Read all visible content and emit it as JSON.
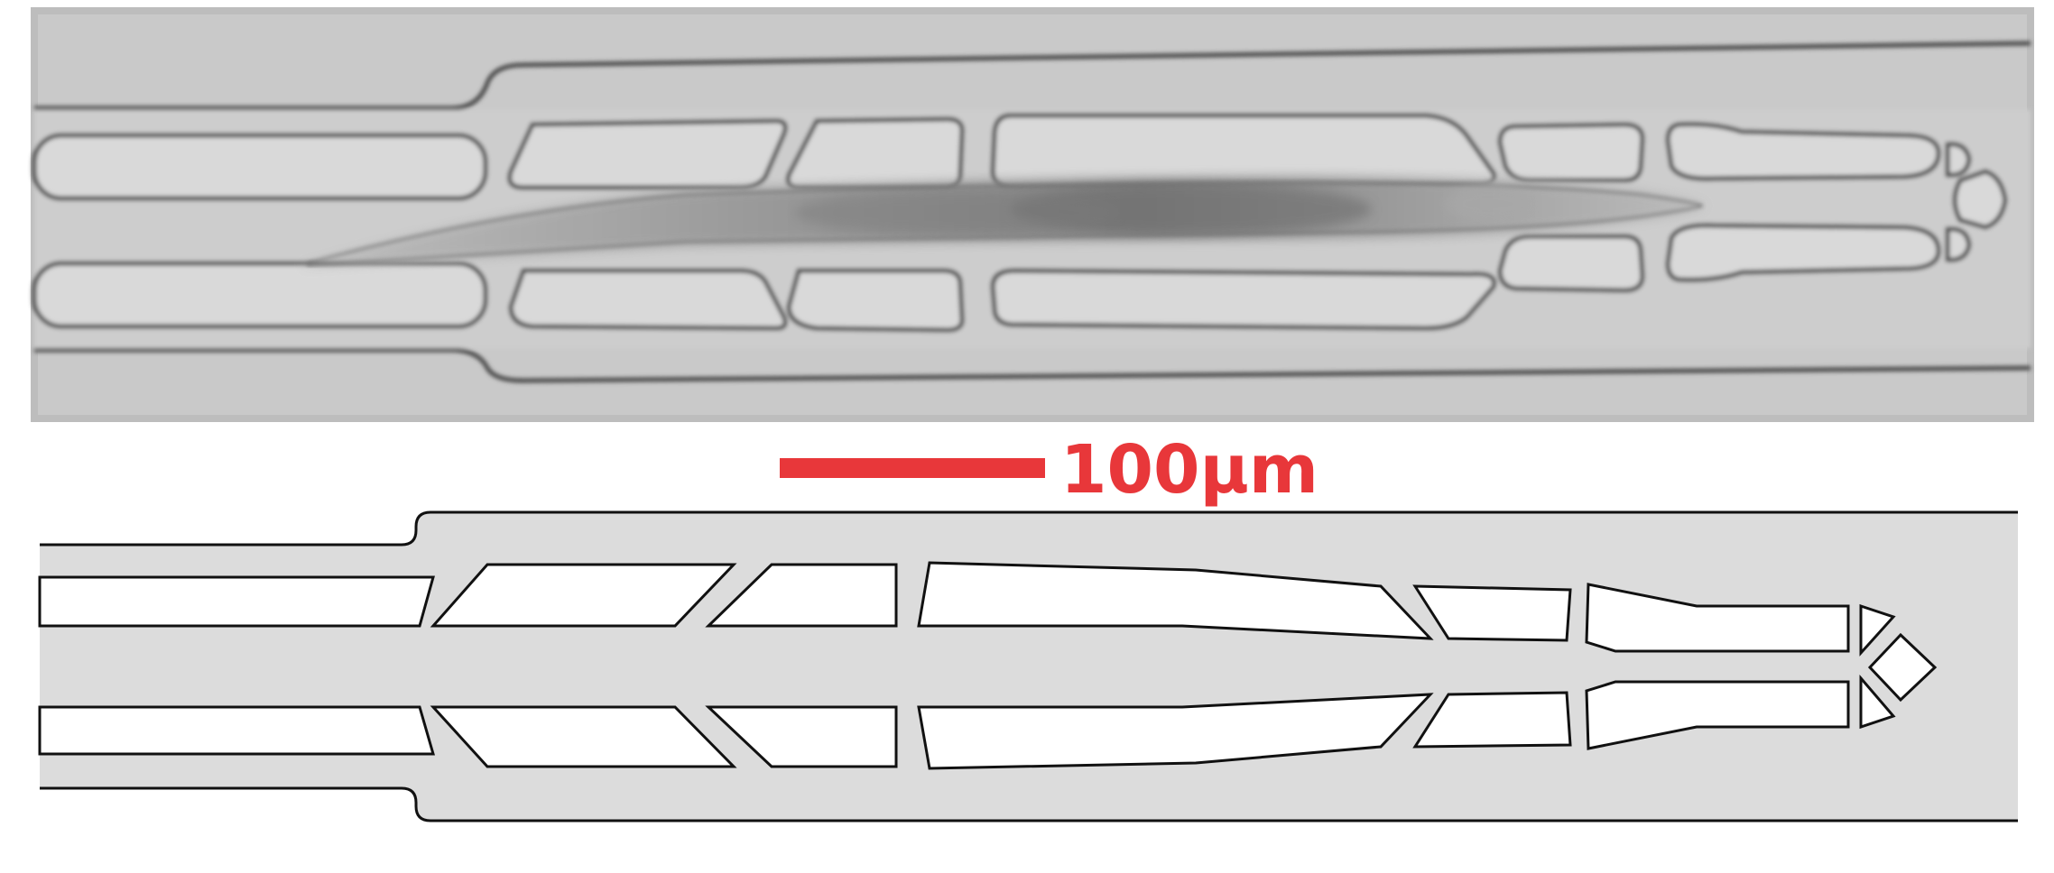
{
  "scale_bar": {
    "label": "100µm",
    "color": "#e8373a"
  },
  "colors": {
    "channel_fill": "#dcdcdc",
    "pillar_fill": "#ffffff",
    "outline": "#111111",
    "micrograph_bg": "#c9c9c9",
    "micrograph_edge": "#4a4a4a"
  },
  "panels": {
    "top": "micrograph",
    "bottom": "schematic"
  }
}
